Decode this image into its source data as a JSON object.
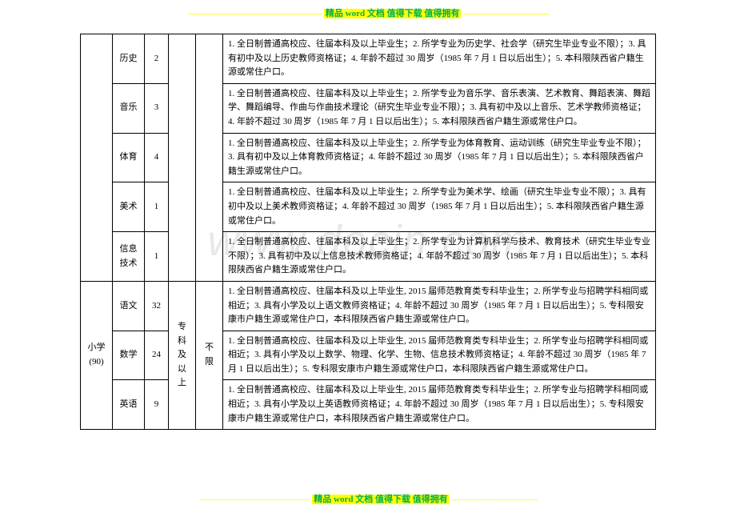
{
  "banner": {
    "dashes_left": "---------------------------------------------------------------",
    "text": "精品 word 文档  值得下载  值得拥有",
    "dashes_right": "----------------------------------------"
  },
  "footer": {
    "dashes_left": "----------------------------------------------------",
    "text": "精品 word 文档  值得下载  值得拥有",
    "dashes_right": "----------------------------------------"
  },
  "watermark": "www.docin.com",
  "columns": {
    "stage": "小学(90)",
    "degree": "专科及以上",
    "gender": "不限"
  },
  "rows": [
    {
      "subject": "历史",
      "count": "2",
      "req": "1. 全日制普通高校应、往届本科及以上毕业生；2. 所学专业为历史学、社会学（研究生毕业专业不限）；3. 具有初中及以上历史教师资格证；4. 年龄不超过 30 周岁（1985 年 7 月 1 日以后出生）；5. 本科限陕西省户籍生源或常住户口。"
    },
    {
      "subject": "音乐",
      "count": "3",
      "req": "1. 全日制普通高校应、往届本科及以上毕业生；2. 所学专业为音乐学、音乐表演、艺术教育、舞蹈表演、舞蹈学、舞蹈编导、作曲与作曲技术理论（研究生毕业专业不限）；3. 具有初中及以上音乐、艺术学教师资格证；4. 年龄不超过 30 周岁（1985 年 7 月 1 日以后出生）；5. 本科限陕西省户籍生源或常住户口。"
    },
    {
      "subject": "体育",
      "count": "4",
      "req": "1. 全日制普通高校应、往届本科及以上毕业生；2. 所学专业为体育教育、运动训练（研究生毕业专业不限）；3. 具有初中及以上体育教师资格证；4. 年龄不超过 30 周岁（1985 年 7 月 1 日以后出生）；5. 本科限陕西省户籍生源或常住户口。"
    },
    {
      "subject": "美术",
      "count": "1",
      "req": "1. 全日制普通高校应、往届本科及以上毕业生；2. 所学专业为美术学、绘画（研究生毕业专业不限）；3. 具有初中及以上美术教师资格证；4. 年龄不超过 30 周岁（1985 年 7 月 1 日以后出生）；5. 本科限陕西省户籍生源或常住户口。"
    },
    {
      "subject": "信息技术",
      "count": "1",
      "req": "1. 全日制普通高校应、往届本科及以上毕业生；2. 所学专业为计算机科学与技术、教育技术（研究生毕业专业不限）；3. 具有初中及以上信息技术教师资格证；4. 年龄不超过 30 周岁（1985 年 7 月 1 日以后出生）；5. 本科限陕西省户籍生源或常住户口。"
    },
    {
      "subject": "语文",
      "count": "32",
      "req": "1. 全日制普通高校应、往届本科及以上毕业生, 2015 届师范教育类专科毕业生；2. 所学专业与招聘学科相同或相近；3. 具有小学及以上语文教师资格证；4. 年龄不超过 30 周岁（1985 年 7 月 1 日以后出生）；5. 专科限安康市户籍生源或常住户口，本科限陕西省户籍生源或常住户口。"
    },
    {
      "subject": "数学",
      "count": "24",
      "req": "1. 全日制普通高校应、往届本科及以上毕业生, 2015 届师范教育类专科毕业生；2. 所学专业与招聘学科相同或相近；3. 具有小学及以上数学、物理、化学、生物、信息技术教师资格证；4. 年龄不超过 30 周岁（1985 年 7 月 1 日以后出生）；5. 专科限安康市户籍生源或常住户口，本科限陕西省户籍生源或常住户口。"
    },
    {
      "subject": "英语",
      "count": "9",
      "req": "1. 全日制普通高校应、往届本科及以上毕业生, 2015 届师范教育类专科毕业生；2. 所学专业与招聘学科相同或相近；3. 具有小学及以上英语教师资格证；4. 年龄不超过 30 周岁（1985 年 7 月 1 日以后出生）；5. 专科限安康市户籍生源或常住户口，本科限陕西省户籍生源或常住户口。"
    }
  ],
  "col_widths": {
    "stage": "40px",
    "subject": "40px",
    "count": "30px",
    "degree": "34px",
    "gender": "34px",
    "req": "auto"
  }
}
